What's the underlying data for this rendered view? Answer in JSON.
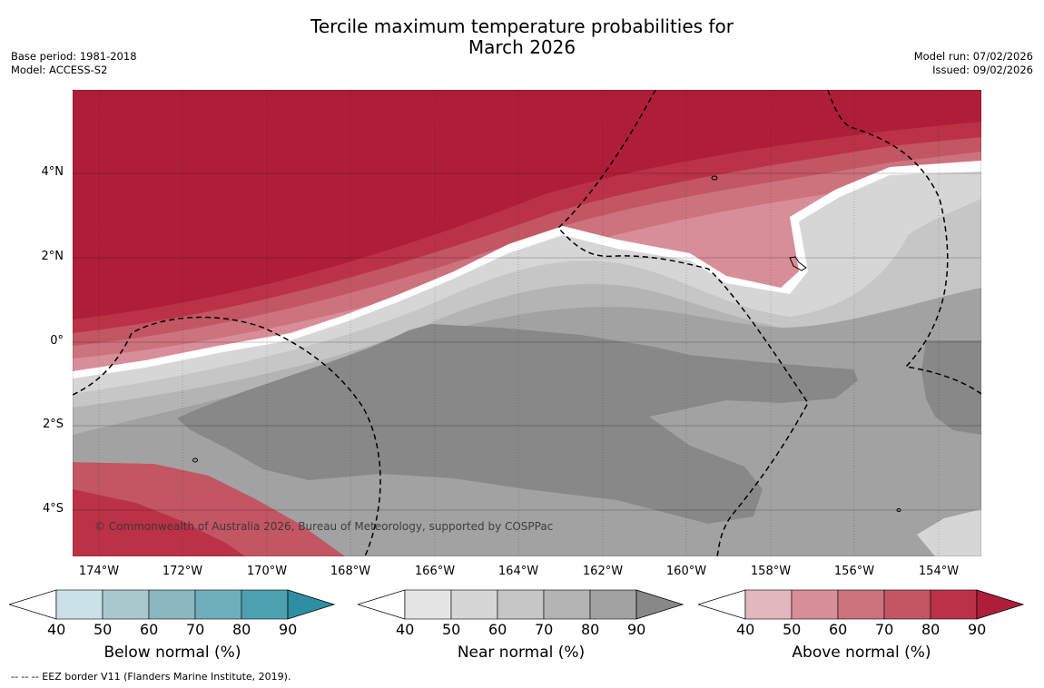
{
  "title_line1": "Tercile maximum temperature probabilities for",
  "title_line2": "March 2026",
  "base_period": "Base period: 1981-2018",
  "model": "Model: ACCESS-S2",
  "model_run": "Model run: 07/02/2026",
  "issued": "Issued: 09/02/2026",
  "copyright": "© Commonwealth of Australia 2026, Bureau of Meteorology, supported by COSPPac",
  "lat_labels": [
    "4°N",
    "2°N",
    "0°",
    "2°S",
    "4°S"
  ],
  "lon_labels": [
    "174°W",
    "172°W",
    "170°W",
    "168°W",
    "166°W",
    "164°W",
    "162°W",
    "160°W",
    "158°W",
    "156°W",
    "154°W"
  ],
  "colorbars": [
    {
      "title": "Below normal (%)",
      "ticks": [
        "40",
        "50",
        "60",
        "70",
        "80",
        "90"
      ],
      "colors": [
        "#ffffff",
        "#c9e1e7",
        "#a8c8cd",
        "#89b7c2",
        "#6fafbb",
        "#4ba1b0",
        "#2e8fa3"
      ]
    },
    {
      "title": "Near normal (%)",
      "ticks": [
        "40",
        "50",
        "60",
        "70",
        "80",
        "90"
      ],
      "colors": [
        "#ffffff",
        "#e5e5e5",
        "#d6d6d6",
        "#c6c6c6",
        "#b4b4b4",
        "#a2a2a2",
        "#888888"
      ]
    },
    {
      "title": "Above normal (%)",
      "ticks": [
        "40",
        "50",
        "60",
        "70",
        "80",
        "90"
      ],
      "colors": [
        "#ffffff",
        "#e2b7bd",
        "#d88e98",
        "#cc737e",
        "#c35663",
        "#bb3247",
        "#af1e38"
      ]
    }
  ],
  "eez_note": "--  --  -- EEZ border V11 (Flanders Marine Institute, 2019)."
}
